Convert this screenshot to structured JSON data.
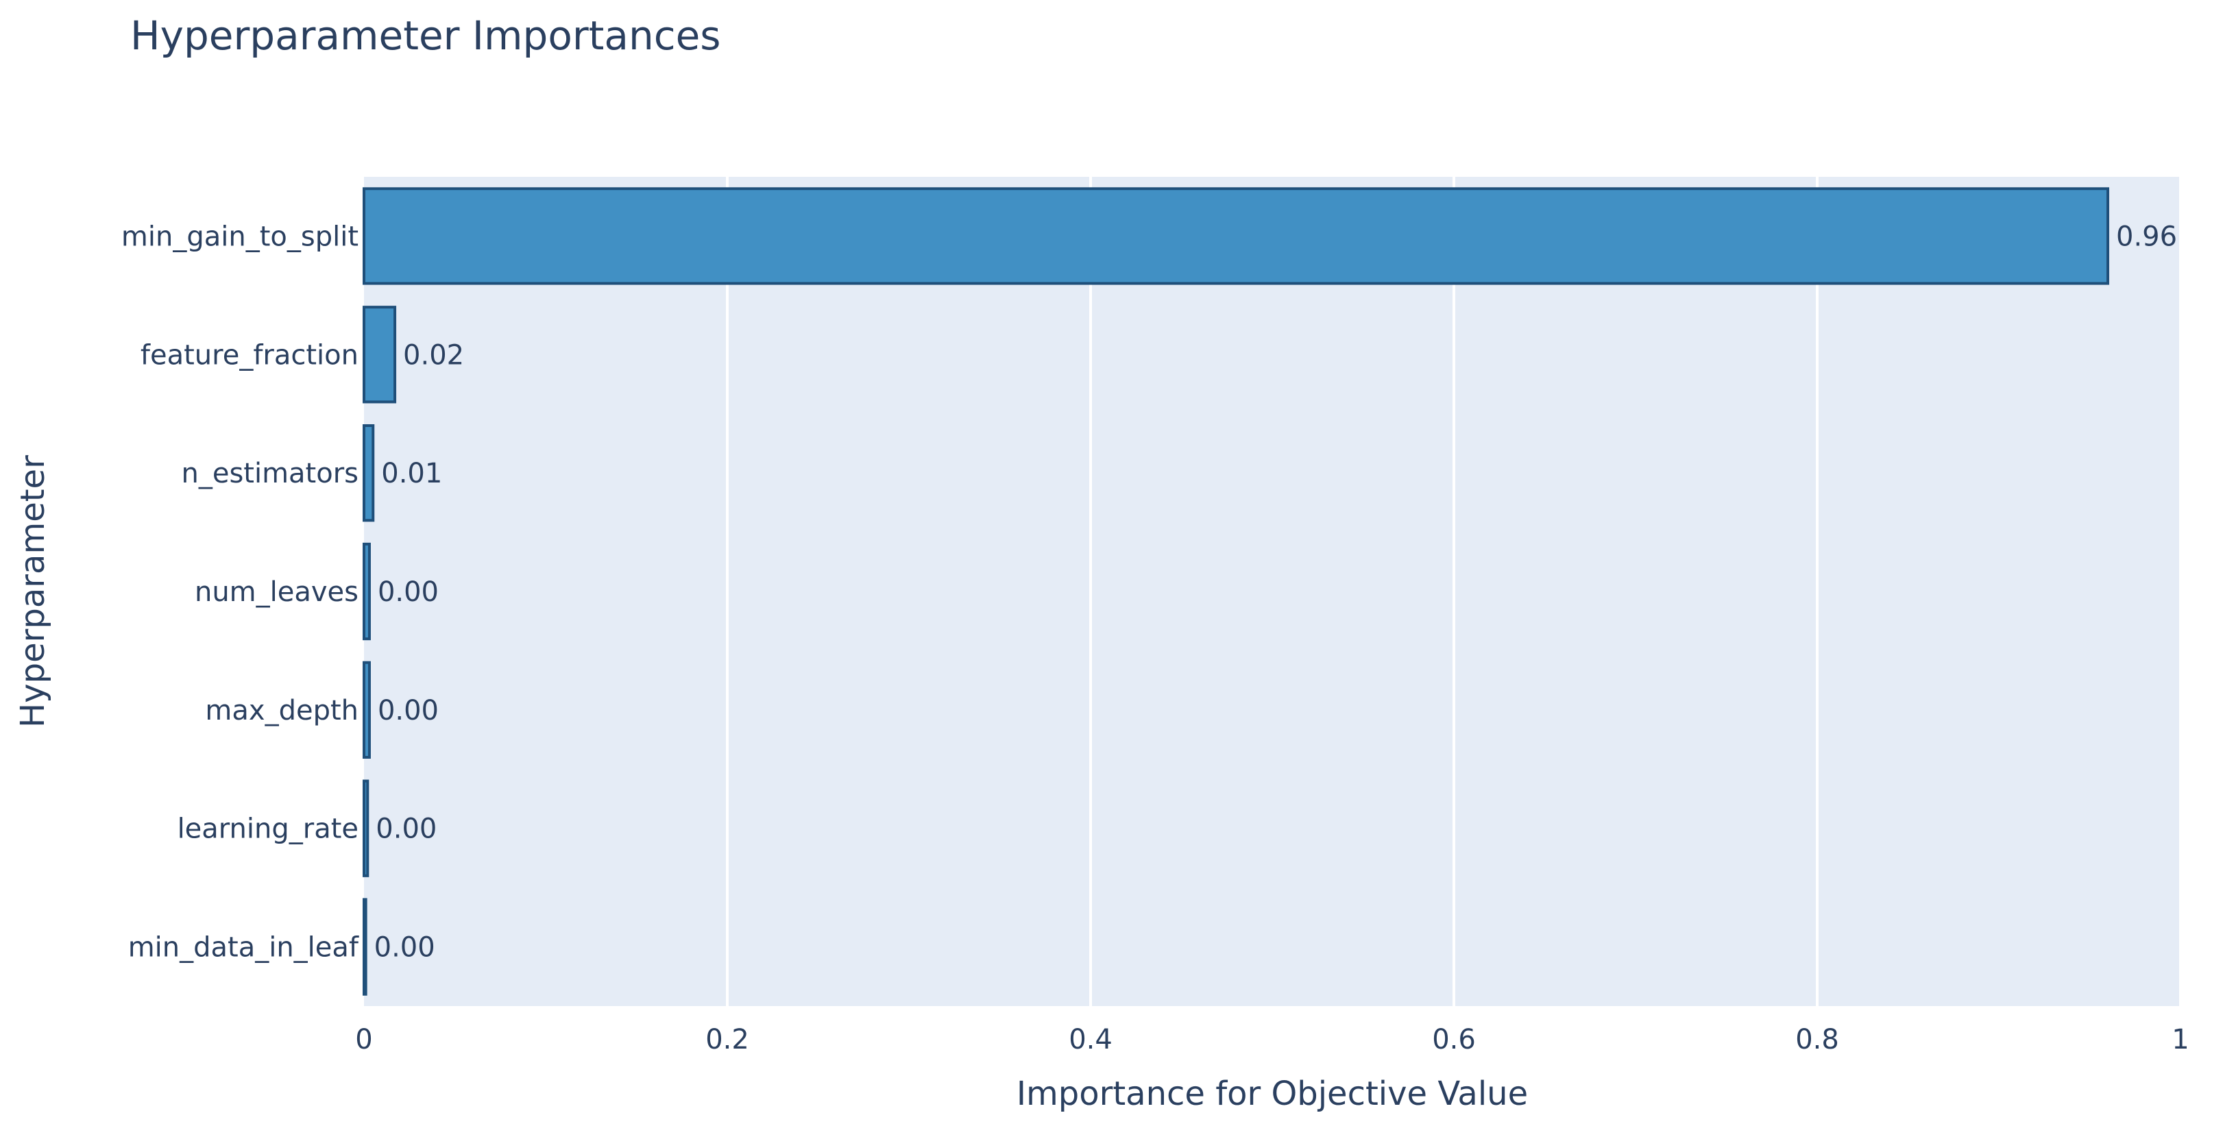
{
  "chart_data": {
    "type": "bar",
    "orientation": "horizontal",
    "title": "Hyperparameter Importances",
    "xlabel": "Importance for Objective Value",
    "ylabel": "Hyperparameter",
    "categories": [
      "min_gain_to_split",
      "feature_fraction",
      "n_estimators",
      "num_leaves",
      "max_depth",
      "learning_rate",
      "min_data_in_leaf"
    ],
    "values": [
      0.96,
      0.017,
      0.005,
      0.003,
      0.003,
      0.002,
      0.001
    ],
    "value_labels": [
      "0.96",
      "0.02",
      "0.01",
      "0.00",
      "0.00",
      "0.00",
      "0.00"
    ],
    "xlim": [
      0,
      1
    ],
    "xticks": [
      0,
      0.2,
      0.4,
      0.6,
      0.8,
      1
    ],
    "xtick_labels": [
      "0",
      "0.2",
      "0.4",
      "0.6",
      "0.8",
      "1"
    ],
    "grid": true,
    "colors": {
      "plot_background": "#e5ecf6",
      "bar_fill": "#4190c4",
      "bar_edge": "#1f4f7a",
      "grid": "#ffffff",
      "text": "#2a3f5f"
    }
  }
}
